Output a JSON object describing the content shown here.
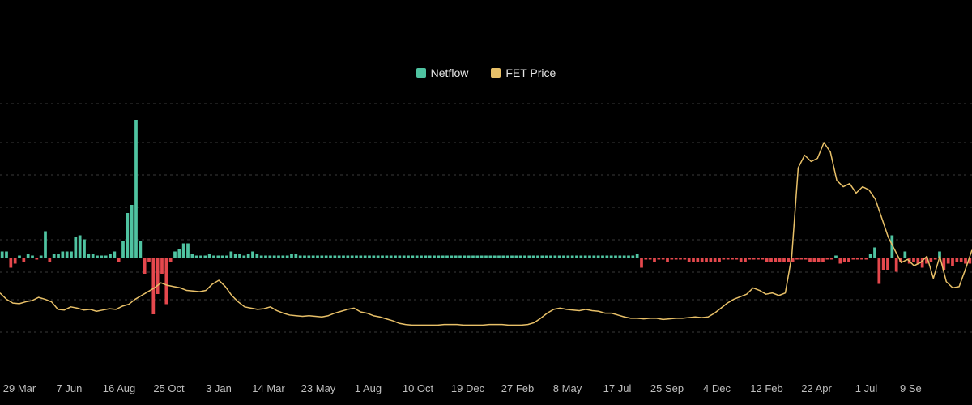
{
  "chart_data": {
    "type": "bar",
    "legend_position": "top-center",
    "grid": true,
    "colors": {
      "background": "#000000",
      "netflow_positive": "#4fc3a1",
      "netflow_negative": "#e5484d",
      "price_line": "#e8c068",
      "grid": "#3a3a3a",
      "axis_text": "#bfbfbf"
    },
    "x_tick_labels": [
      "29 Mar",
      "7 Jun",
      "16 Aug",
      "25 Oct",
      "3 Jan",
      "14 Mar",
      "23 May",
      "1 Aug",
      "10 Oct",
      "19 Dec",
      "27 Feb",
      "8 May",
      "17 Jul",
      "25 Sep",
      "4 Dec",
      "12 Feb",
      "22 Apr",
      "1 Jul",
      "9 Se"
    ],
    "series": [
      {
        "name": "Netflow",
        "kind": "bar",
        "values": [
          0.3,
          0.3,
          -0.5,
          -0.3,
          0.1,
          -0.2,
          0.2,
          0.1,
          -0.1,
          0.1,
          1.3,
          -0.2,
          0.2,
          0.2,
          0.3,
          0.3,
          0.3,
          1.0,
          1.1,
          0.9,
          0.2,
          0.2,
          0.1,
          0.1,
          0.1,
          0.2,
          0.3,
          -0.2,
          0.8,
          2.2,
          2.6,
          6.8,
          0.8,
          -0.8,
          -0.2,
          -2.8,
          -1.8,
          -0.8,
          -2.3,
          -0.2,
          0.3,
          0.4,
          0.7,
          0.7,
          0.2,
          0.1,
          0.1,
          0.1,
          0.2,
          0.1,
          0.1,
          0.1,
          0.1,
          0.3,
          0.2,
          0.2,
          0.1,
          0.2,
          0.3,
          0.2,
          0.1,
          0.1,
          0.1,
          0.1,
          0.1,
          0.1,
          0.1,
          0.2,
          0.2,
          0.1,
          0.1,
          0.1,
          0.1,
          0.1,
          0.1,
          0.1,
          0.1,
          0.1,
          0.1,
          0.1,
          0.1,
          0.1,
          0.1,
          0.1,
          0.1,
          0.1,
          0.1,
          0.1,
          0.1,
          0.1,
          0.1,
          0.1,
          0.1,
          0.1,
          0.1,
          0.1,
          0.1,
          0.1,
          0.1,
          0.1,
          0.1,
          0.1,
          0.1,
          0.1,
          0.1,
          0.1,
          0.1,
          0.1,
          0.1,
          0.1,
          0.1,
          0.1,
          0.1,
          0.1,
          0.1,
          0.1,
          0.1,
          0.1,
          0.1,
          0.1,
          0.1,
          0.1,
          0.1,
          0.1,
          0.1,
          0.1,
          0.1,
          0.1,
          0.1,
          0.1,
          0.1,
          0.1,
          0.1,
          0.1,
          0.1,
          0.1,
          0.1,
          0.1,
          0.1,
          0.1,
          0.1,
          0.1,
          0.1,
          0.1,
          0.1,
          0.1,
          0.1,
          0.2,
          -0.5,
          -0.1,
          -0.1,
          -0.2,
          -0.1,
          -0.1,
          -0.2,
          -0.1,
          -0.1,
          -0.1,
          -0.1,
          -0.2,
          -0.2,
          -0.2,
          -0.2,
          -0.2,
          -0.2,
          -0.2,
          -0.2,
          -0.1,
          -0.1,
          -0.1,
          -0.1,
          -0.2,
          -0.2,
          -0.1,
          -0.1,
          -0.1,
          -0.1,
          -0.2,
          -0.2,
          -0.2,
          -0.2,
          -0.2,
          -0.2,
          -0.2,
          -0.1,
          -0.1,
          -0.1,
          -0.2,
          -0.2,
          -0.2,
          -0.2,
          -0.1,
          -0.1,
          0.1,
          -0.3,
          -0.2,
          -0.2,
          -0.1,
          -0.1,
          -0.1,
          -0.1,
          0.2,
          0.5,
          -1.3,
          -0.6,
          -0.6,
          1.1,
          -0.7,
          -0.2,
          0.3,
          -0.3,
          -0.2,
          -0.3,
          -0.5,
          -0.3,
          -0.2,
          -0.1,
          0.3,
          -0.6,
          -0.3,
          -0.4,
          -0.2,
          -0.2,
          -0.3,
          -0.3
        ]
      },
      {
        "name": "FET Price",
        "kind": "line",
        "values": [
          0.62,
          0.52,
          0.46,
          0.45,
          0.48,
          0.5,
          0.55,
          0.52,
          0.48,
          0.36,
          0.35,
          0.4,
          0.38,
          0.35,
          0.36,
          0.33,
          0.35,
          0.37,
          0.36,
          0.41,
          0.44,
          0.52,
          0.58,
          0.64,
          0.7,
          0.78,
          0.74,
          0.72,
          0.7,
          0.66,
          0.65,
          0.64,
          0.66,
          0.76,
          0.82,
          0.72,
          0.58,
          0.48,
          0.4,
          0.38,
          0.36,
          0.37,
          0.4,
          0.34,
          0.3,
          0.27,
          0.26,
          0.25,
          0.26,
          0.25,
          0.24,
          0.26,
          0.3,
          0.33,
          0.36,
          0.38,
          0.32,
          0.3,
          0.26,
          0.24,
          0.21,
          0.18,
          0.14,
          0.12,
          0.11,
          0.11,
          0.11,
          0.11,
          0.11,
          0.12,
          0.12,
          0.12,
          0.11,
          0.11,
          0.11,
          0.11,
          0.12,
          0.12,
          0.12,
          0.11,
          0.11,
          0.11,
          0.12,
          0.15,
          0.22,
          0.3,
          0.36,
          0.38,
          0.36,
          0.35,
          0.34,
          0.36,
          0.34,
          0.33,
          0.3,
          0.3,
          0.27,
          0.24,
          0.22,
          0.22,
          0.21,
          0.22,
          0.22,
          0.2,
          0.21,
          0.22,
          0.22,
          0.23,
          0.24,
          0.23,
          0.24,
          0.3,
          0.38,
          0.46,
          0.52,
          0.56,
          0.6,
          0.7,
          0.66,
          0.6,
          0.62,
          0.58,
          0.62,
          1.2,
          2.6,
          2.8,
          2.7,
          2.75,
          3.0,
          2.85,
          2.4,
          2.3,
          2.35,
          2.2,
          2.3,
          2.25,
          2.1,
          1.8,
          1.5,
          1.3,
          1.1,
          1.15,
          1.05,
          1.1,
          1.2,
          0.85,
          1.2,
          0.8,
          0.7,
          0.72,
          1.0,
          1.3
        ]
      }
    ]
  }
}
